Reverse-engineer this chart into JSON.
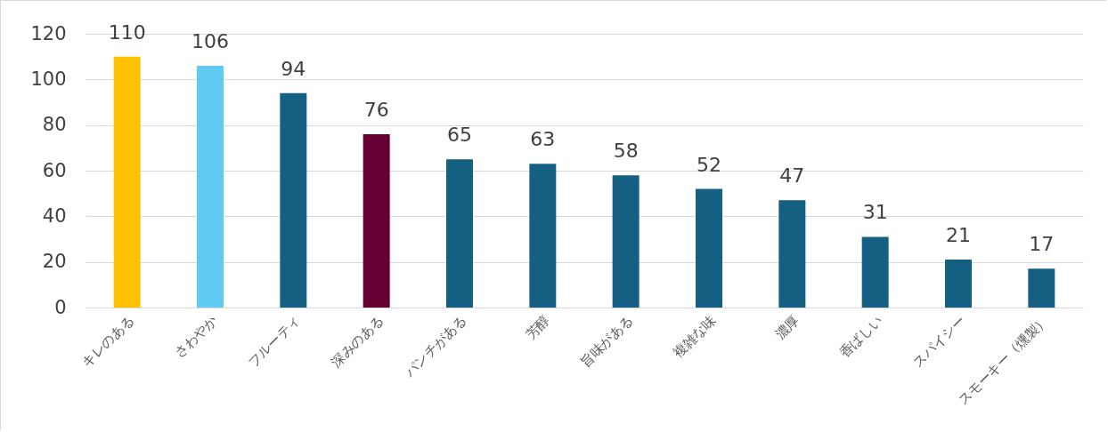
{
  "chart_data": {
    "type": "bar",
    "categories": [
      "キレのある",
      "さわやか",
      "フルーティ",
      "深みのある",
      "パンチがある",
      "芳醇",
      "旨味がある",
      "複雑な味",
      "濃厚",
      "香ばしい",
      "スパイシー",
      "スモーキー（燻製）"
    ],
    "values": [
      110,
      106,
      94,
      76,
      65,
      63,
      58,
      52,
      47,
      31,
      21,
      17
    ],
    "colors": [
      "#ffc000",
      "#5fcbf3",
      "#156082",
      "#660033",
      "#156082",
      "#156082",
      "#156082",
      "#156082",
      "#156082",
      "#156082",
      "#156082",
      "#156082"
    ],
    "ylim": [
      0,
      120
    ],
    "yticks": [
      0,
      20,
      40,
      60,
      80,
      100,
      120
    ],
    "grid": "y",
    "data_labels": true,
    "legend": false
  }
}
